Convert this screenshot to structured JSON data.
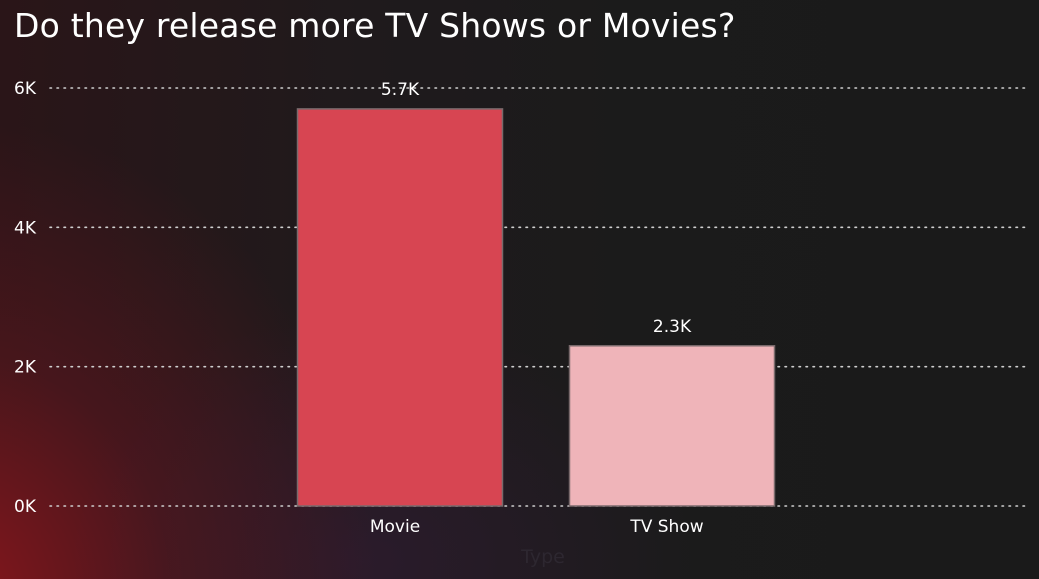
{
  "chart_data": {
    "type": "bar",
    "title": "Do they release more TV Shows or Movies?",
    "categories": [
      "Movie",
      "TV Show"
    ],
    "values": [
      5700,
      2300
    ],
    "data_labels": [
      "5.7K",
      "2.3K"
    ],
    "bar_colors": [
      "#d74552",
      "#efb4b9"
    ],
    "xlabel": "Type",
    "ylabel": "",
    "ylim": [
      0,
      6000
    ],
    "yticks": [
      {
        "value": 0,
        "label": "0K"
      },
      {
        "value": 2000,
        "label": "2K"
      },
      {
        "value": 4000,
        "label": "4K"
      },
      {
        "value": 6000,
        "label": "6K"
      }
    ],
    "grid": true,
    "legend": "none"
  }
}
